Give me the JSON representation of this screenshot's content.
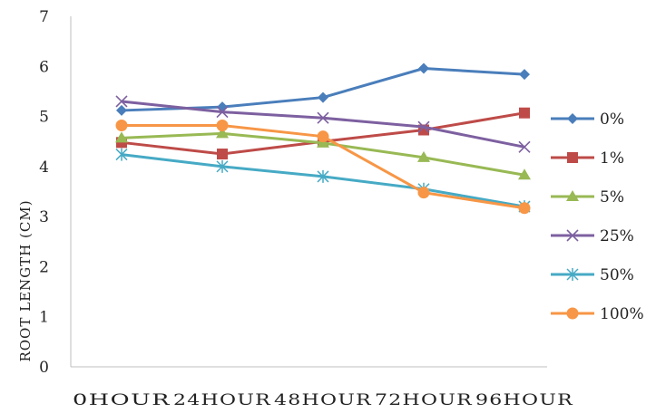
{
  "chart_data": {
    "type": "line",
    "title": "",
    "xlabel": "",
    "ylabel": "ROOT LENGTH (CM)",
    "categories": [
      "0HOUR",
      "24HOUR",
      "48HOUR",
      "72HOUR",
      "96HOUR"
    ],
    "ylim": [
      0,
      7
    ],
    "yticks": [
      "0",
      "1",
      "2",
      "3",
      "4",
      "5",
      "6",
      "7"
    ],
    "grid": false,
    "legend_position": "right",
    "series": [
      {
        "name": "0%",
        "values": [
          5.12,
          5.19,
          5.38,
          5.96,
          5.84
        ],
        "color": "#4a7ebb",
        "marker": "diamond"
      },
      {
        "name": "1%",
        "values": [
          4.48,
          4.25,
          4.5,
          4.73,
          5.07
        ],
        "color": "#be4b48",
        "marker": "square"
      },
      {
        "name": "5%",
        "values": [
          4.57,
          4.66,
          4.47,
          4.18,
          3.83
        ],
        "color": "#98b954",
        "marker": "triangle"
      },
      {
        "name": "25%",
        "values": [
          5.3,
          5.09,
          4.97,
          4.79,
          4.39
        ],
        "color": "#7d60a0",
        "marker": "x"
      },
      {
        "name": "50%",
        "values": [
          4.24,
          4.0,
          3.8,
          3.55,
          3.2
        ],
        "color": "#46aac5",
        "marker": "star"
      },
      {
        "name": "100%",
        "values": [
          4.82,
          4.82,
          4.6,
          3.48,
          3.17
        ],
        "color": "#f79646",
        "marker": "circle"
      }
    ]
  }
}
